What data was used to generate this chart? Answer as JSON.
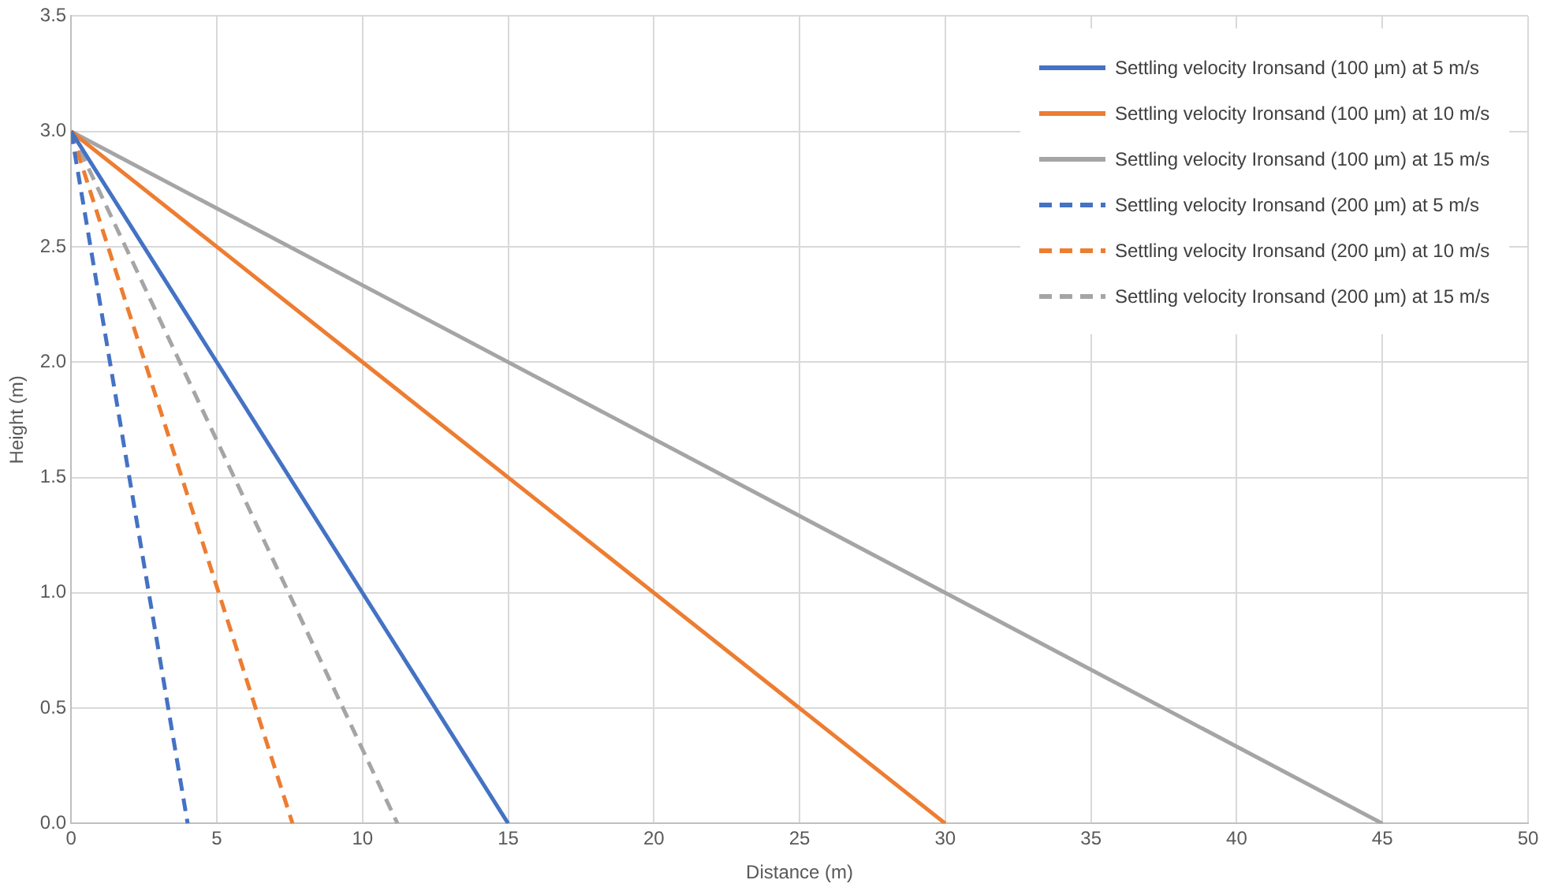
{
  "chart_data": {
    "type": "line",
    "xlabel": "Distance (m)",
    "ylabel": "Height (m)",
    "xlim": [
      0,
      50
    ],
    "xticks": [
      0,
      5,
      10,
      15,
      20,
      25,
      30,
      35,
      40,
      45,
      50
    ],
    "ylim": [
      0,
      3.5
    ],
    "yticks": [
      {
        "value": 0,
        "label": "0.0"
      },
      {
        "value": 0.5,
        "label": "0.5"
      },
      {
        "value": 1,
        "label": "1.0"
      },
      {
        "value": 1.5,
        "label": "1.5"
      },
      {
        "value": 2,
        "label": "2.0"
      },
      {
        "value": 2.5,
        "label": "2.5"
      },
      {
        "value": 3,
        "label": "3.0"
      },
      {
        "value": 3.5,
        "label": "3.5"
      }
    ],
    "grid": true,
    "legend": "top right",
    "marker": "none",
    "series": [
      {
        "name": "Settling velocity Ironsand (100 µm) at 5 m/s",
        "color": "#4472c4",
        "line_style": "solid",
        "x": [
          0,
          15
        ],
        "values": [
          3,
          0
        ]
      },
      {
        "name": "Settling velocity Ironsand (100 µm) at 10 m/s",
        "color": "#ed7d31",
        "line_style": "solid",
        "x": [
          0,
          30
        ],
        "values": [
          3,
          0
        ]
      },
      {
        "name": "Settling velocity Ironsand (100 µm) at 15 m/s",
        "color": "#a5a5a5",
        "line_style": "solid",
        "x": [
          0,
          45
        ],
        "values": [
          3,
          0
        ]
      },
      {
        "name": "Settling velocity Ironsand (200 µm) at 5 m/s",
        "color": "#4472c4",
        "line_style": "dashed",
        "x": [
          0,
          4
        ],
        "values": [
          3,
          0
        ]
      },
      {
        "name": "Settling velocity Ironsand (200 µm) at 10 m/s",
        "color": "#ed7d31",
        "line_style": "dashed",
        "x": [
          0,
          7.6
        ],
        "values": [
          3,
          0
        ]
      },
      {
        "name": "Settling velocity Ironsand (200 µm) at 15 m/s",
        "color": "#a5a5a5",
        "line_style": "dashed",
        "x": [
          0,
          11.2
        ],
        "values": [
          3,
          0
        ]
      }
    ]
  }
}
